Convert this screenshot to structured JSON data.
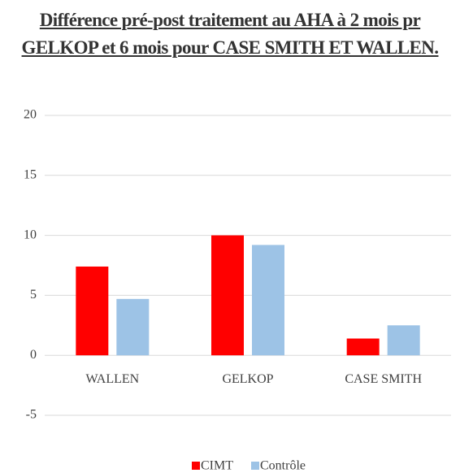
{
  "chart_data": {
    "type": "bar",
    "title": "Différence pré-post traitement au AHA à 2 mois pr GELKOP et 6 mois pour CASE SMITH ET WALLEN.",
    "categories": [
      "WALLEN",
      "GELKOP",
      "CASE SMITH"
    ],
    "series": [
      {
        "name": "CIMT",
        "color": "#ff0000",
        "values": [
          7.4,
          10,
          1.4
        ]
      },
      {
        "name": "Contrôle",
        "color": "#9dc3e6",
        "values": [
          4.7,
          9.2,
          2.5
        ]
      }
    ],
    "ylim": [
      -5,
      20
    ],
    "yticks": [
      -5,
      0,
      5,
      10,
      15,
      20
    ],
    "grid": true,
    "legend": "bottom"
  }
}
